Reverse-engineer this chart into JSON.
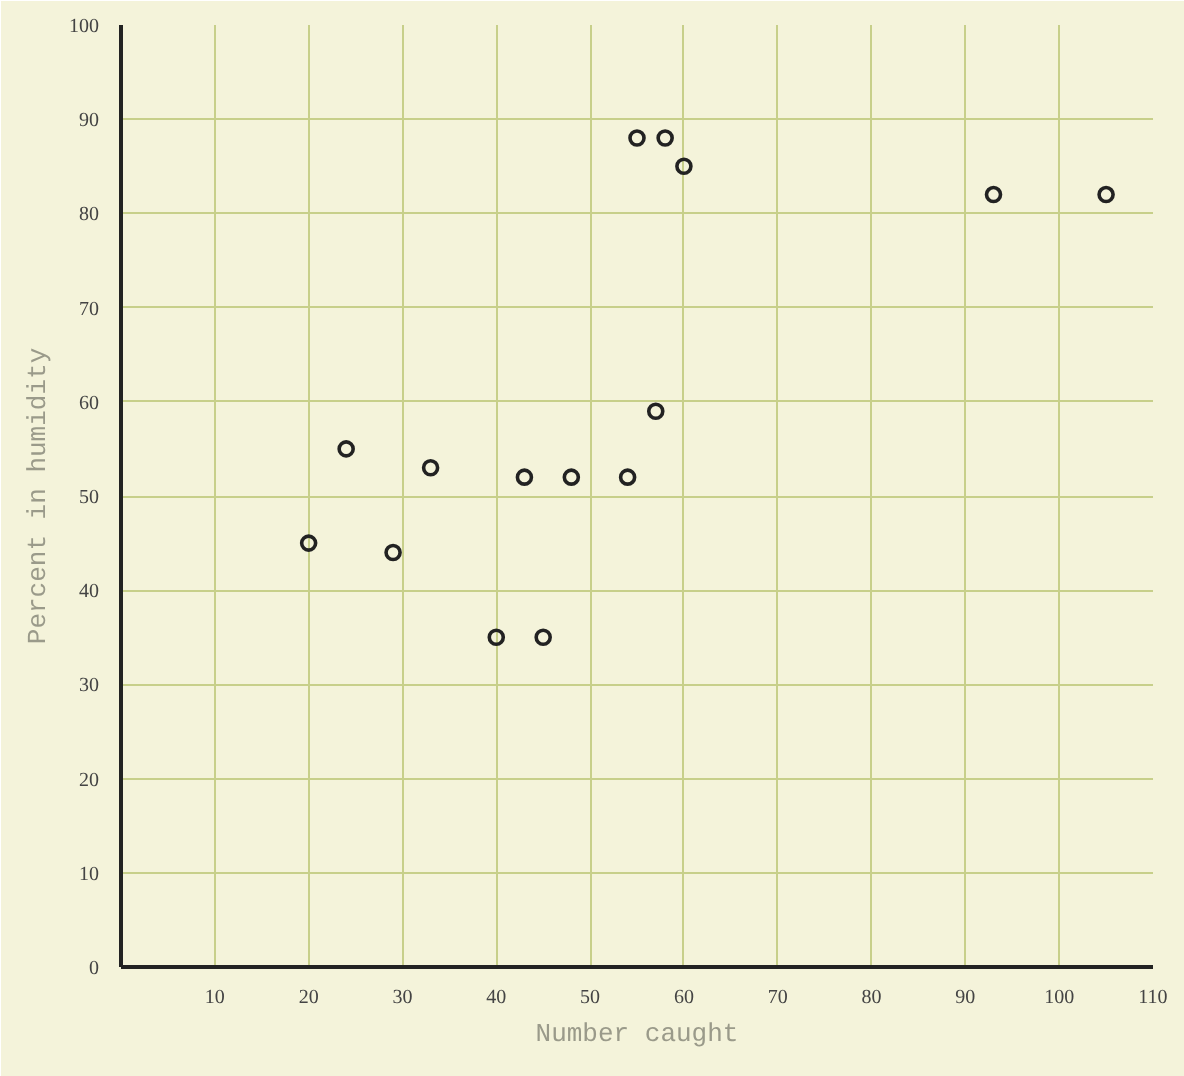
{
  "chart_data": {
    "type": "scatter",
    "xlabel": "Number caught",
    "ylabel": "Percent in humidity",
    "x": [
      20,
      24,
      29,
      33,
      40,
      43,
      45,
      48,
      54,
      55,
      57,
      58,
      60,
      93,
      105
    ],
    "values": [
      45,
      55,
      44,
      53,
      35,
      52,
      35,
      52,
      52,
      88,
      59,
      88,
      85,
      82,
      82
    ],
    "color": "#222222",
    "marker": "circle",
    "grid": true,
    "xlim": [
      0,
      110
    ],
    "ylim": [
      0,
      100
    ],
    "xticks": [
      {
        "value": 0,
        "label": null
      },
      10,
      20,
      30,
      40,
      50,
      60,
      70,
      80,
      90,
      100,
      110
    ],
    "yticks": [
      0,
      10,
      20,
      30,
      40,
      50,
      60,
      70,
      80,
      90,
      100
    ]
  }
}
